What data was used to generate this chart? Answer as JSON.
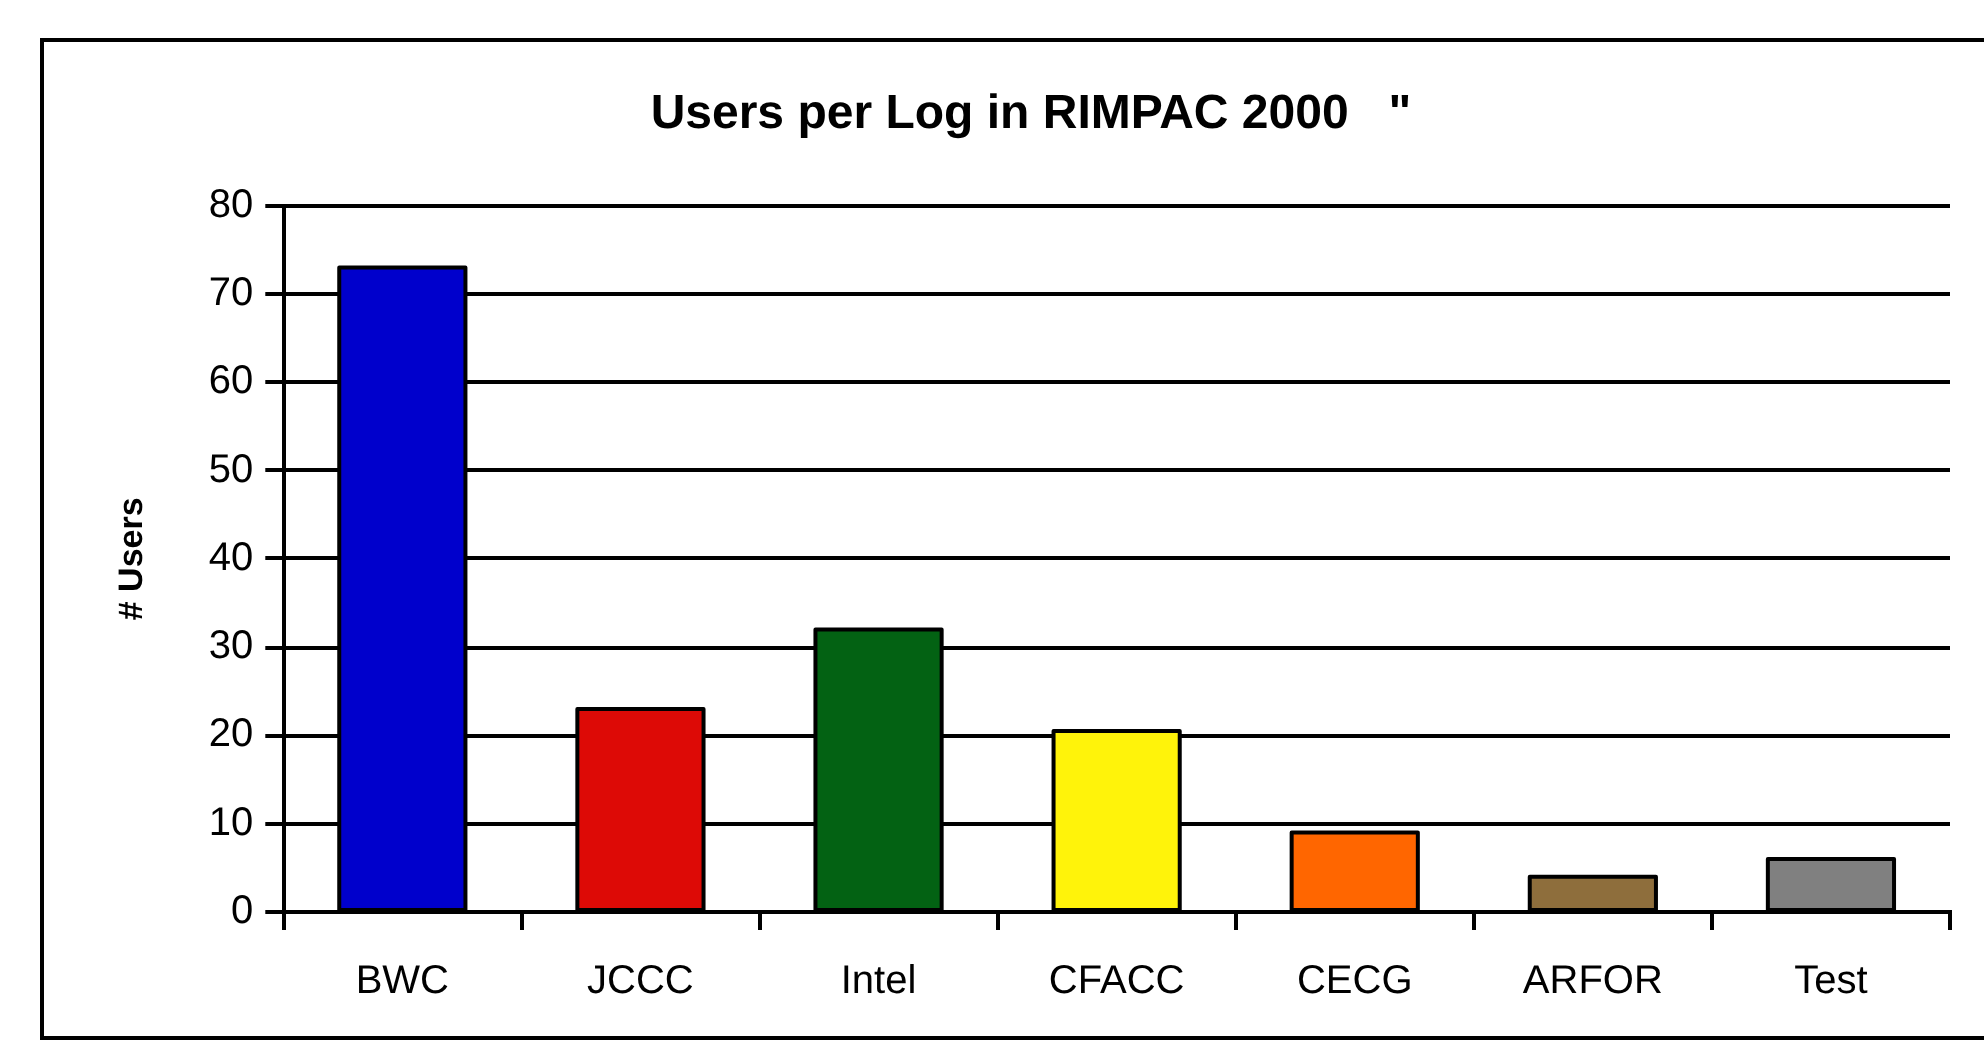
{
  "chart_data": {
    "type": "bar",
    "title": "Users per Log in RIMPAC 2000   \"",
    "ylabel": "# Users",
    "categories": [
      "BWC",
      "JCCC",
      "Intel",
      "CFACC",
      "CECG",
      "ARFOR",
      "Test"
    ],
    "values": [
      73,
      23,
      32,
      20.5,
      9,
      4,
      6
    ],
    "colors": [
      "#0000cc",
      "#dd0a06",
      "#036213",
      "#fff30a",
      "#ff6600",
      "#8e6e3c",
      "#808080"
    ],
    "ylim": [
      0,
      80
    ],
    "yticks": [
      0,
      10,
      20,
      30,
      40,
      50,
      60,
      70,
      80
    ],
    "grid": "y",
    "legend": false
  }
}
